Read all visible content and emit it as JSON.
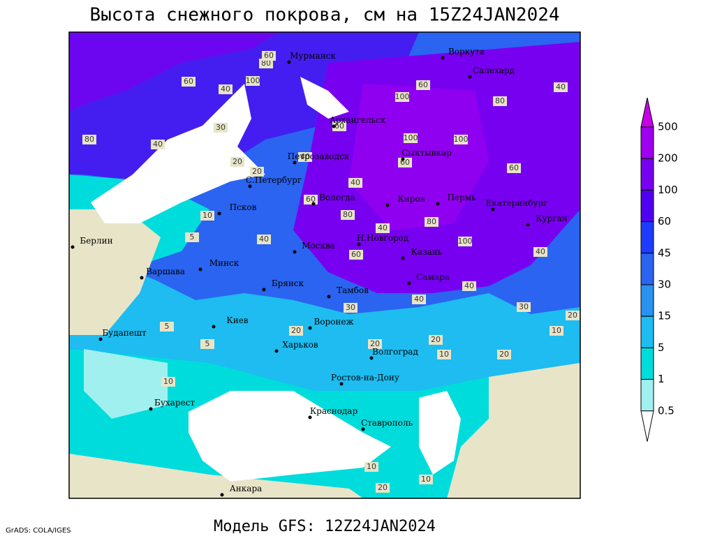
{
  "title": "Высота снежного покрова, см на 15Z24JAN2024",
  "footer": "Модель GFS: 12Z24JAN2024",
  "credit": "GrADS: COLA/IGES",
  "legend": {
    "levels": [
      500,
      200,
      100,
      60,
      45,
      30,
      15,
      5,
      1,
      0.5
    ],
    "colors": [
      "#c800e8",
      "#a000f0",
      "#7800f0",
      "#5000f0",
      "#1e3cff",
      "#2a64f0",
      "#2892f0",
      "#1ebcf0",
      "#00dcdc",
      "#a0f0f0",
      "#ffffff"
    ]
  },
  "cities": [
    "Мурманск",
    "Воркута",
    "Салехард",
    "Архангельск",
    "Петрозаводск",
    "Сыктывкар",
    "С.Петербург",
    "Вологда",
    "Киров",
    "Пермь",
    "Екатеринбург",
    "Курган",
    "Псков",
    "Берлин",
    "Москва",
    "Н.Новгород",
    "Казань",
    "Минск",
    "Варшава",
    "Брянск",
    "Самара",
    "Тамбов",
    "Киев",
    "Воронеж",
    "Будапешт",
    "Харьков",
    "Волгоград",
    "Ростов-на-Дону",
    "Бухарест",
    "Краснодар",
    "Ставрополь",
    "Анкара"
  ],
  "contour_labels": [
    "80",
    "60",
    "100",
    "80",
    "60",
    "40",
    "40",
    "30",
    "20",
    "20",
    "10",
    "5",
    "40",
    "40",
    "40",
    "80",
    "40",
    "60",
    "100",
    "100",
    "60",
    "100",
    "80",
    "60",
    "40",
    "30",
    "40",
    "20",
    "10",
    "20",
    "10",
    "20",
    "20",
    "30",
    "60",
    "80",
    "100",
    "40",
    "40",
    "60",
    "20",
    "5",
    "5",
    "10",
    "10",
    "20",
    "10",
    "60"
  ]
}
